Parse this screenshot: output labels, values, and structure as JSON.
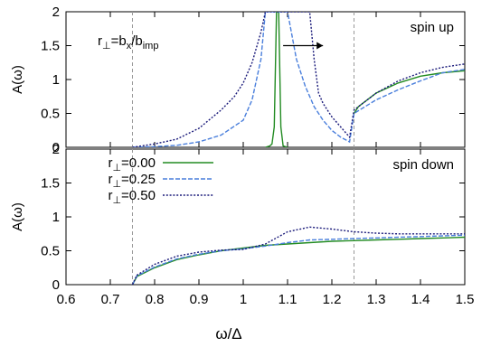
{
  "chart_data": [
    {
      "panel": "top",
      "type": "line",
      "annotation_label": "spin up",
      "ylabel": "A(ω)",
      "xlim": [
        0.6,
        1.5
      ],
      "ylim": [
        0,
        2
      ],
      "yticks": [
        "0",
        "0.5",
        "1",
        "1.5",
        "2"
      ],
      "formula": {
        "main": "r",
        "sub1": "⊥",
        "mid": "=b",
        "sub2": "x",
        "slash": "/b",
        "sub3": "imp"
      },
      "dashed_vertical_lines": [
        0.75,
        1.25
      ],
      "series": [
        {
          "color": "#228b22",
          "style": "solid",
          "x": [
            1.25,
            1.26,
            1.3,
            1.35,
            1.4,
            1.45,
            1.5
          ],
          "y": [
            0.5,
            0.6,
            0.8,
            0.95,
            1.05,
            1.1,
            1.13
          ],
          "peak": {
            "x": [
              1.05,
              1.06,
              1.065,
              1.07,
              1.075,
              1.08,
              1.085,
              1.09,
              1.1
            ],
            "y": [
              0.0,
              0.02,
              0.05,
              0.3,
              2.0,
              2.0,
              0.3,
              0.02,
              0.0
            ]
          }
        },
        {
          "color": "#4a7fdc",
          "style": "dashed",
          "x": [
            0.75,
            0.8,
            0.85,
            0.9,
            0.95,
            1.0,
            1.02,
            1.04,
            1.05,
            1.1,
            1.12,
            1.14,
            1.16,
            1.18,
            1.2,
            1.22,
            1.24,
            1.25,
            1.3,
            1.35,
            1.4,
            1.45,
            1.5
          ],
          "y": [
            0.0,
            0.01,
            0.03,
            0.08,
            0.18,
            0.4,
            0.7,
            1.3,
            2.0,
            2.0,
            1.3,
            0.9,
            0.6,
            0.4,
            0.25,
            0.15,
            0.08,
            0.5,
            0.7,
            0.85,
            0.98,
            1.1,
            1.15
          ]
        },
        {
          "color": "#1a1a7a",
          "style": "dotted",
          "x": [
            0.75,
            0.8,
            0.85,
            0.9,
            0.95,
            0.98,
            1.0,
            1.02,
            1.04,
            1.05,
            1.15,
            1.16,
            1.17,
            1.18,
            1.2,
            1.22,
            1.24,
            1.25,
            1.3,
            1.35,
            1.4,
            1.45,
            1.5
          ],
          "y": [
            0.0,
            0.05,
            0.12,
            0.28,
            0.55,
            0.75,
            0.95,
            1.25,
            1.7,
            2.0,
            2.0,
            1.3,
            0.8,
            0.65,
            0.45,
            0.3,
            0.15,
            0.55,
            0.8,
            0.98,
            1.1,
            1.18,
            1.23
          ]
        }
      ]
    },
    {
      "panel": "bottom",
      "type": "line",
      "annotation_label": "spin down",
      "ylabel": "A(ω)",
      "xlabel": "ω/Δ",
      "xlim": [
        0.6,
        1.5
      ],
      "ylim": [
        0,
        2
      ],
      "xticks": [
        "0.6",
        "0.7",
        "0.8",
        "0.9",
        "1",
        "1.1",
        "1.2",
        "1.3",
        "1.4",
        "1.5"
      ],
      "yticks": [
        "0",
        "0.5",
        "1",
        "1.5",
        "2"
      ],
      "dashed_vertical_lines": [
        0.75,
        1.25
      ],
      "legend": [
        "r⊥=0.00",
        "r⊥=0.25",
        "r⊥=0.50"
      ],
      "series": [
        {
          "name": "r⊥=0.00",
          "legend_main": "r",
          "legend_sub": "⊥",
          "legend_rest": "=0.00",
          "color": "#228b22",
          "style": "solid",
          "x": [
            0.75,
            0.76,
            0.8,
            0.85,
            0.9,
            0.95,
            1.0,
            1.05,
            1.1,
            1.15,
            1.2,
            1.25,
            1.3,
            1.35,
            1.4,
            1.45,
            1.5
          ],
          "y": [
            0.0,
            0.12,
            0.25,
            0.37,
            0.44,
            0.5,
            0.54,
            0.58,
            0.6,
            0.62,
            0.64,
            0.65,
            0.66,
            0.67,
            0.68,
            0.69,
            0.7
          ]
        },
        {
          "name": "r⊥=0.25",
          "legend_main": "r",
          "legend_sub": "⊥",
          "legend_rest": "=0.25",
          "color": "#4a7fdc",
          "style": "dashed",
          "x": [
            0.75,
            0.76,
            0.8,
            0.85,
            0.9,
            0.95,
            1.0,
            1.05,
            1.1,
            1.15,
            1.2,
            1.25,
            1.3,
            1.35,
            1.4,
            1.45,
            1.5
          ],
          "y": [
            0.0,
            0.13,
            0.26,
            0.38,
            0.45,
            0.5,
            0.53,
            0.57,
            0.62,
            0.66,
            0.67,
            0.68,
            0.69,
            0.7,
            0.71,
            0.72,
            0.73
          ]
        },
        {
          "name": "r⊥=0.50",
          "legend_main": "r",
          "legend_sub": "⊥",
          "legend_rest": "=0.50",
          "color": "#1a1a7a",
          "style": "dotted",
          "x": [
            0.75,
            0.76,
            0.8,
            0.85,
            0.9,
            0.95,
            1.0,
            1.05,
            1.1,
            1.15,
            1.2,
            1.25,
            1.3,
            1.35,
            1.4,
            1.45,
            1.5
          ],
          "y": [
            0.0,
            0.14,
            0.3,
            0.42,
            0.48,
            0.51,
            0.52,
            0.6,
            0.78,
            0.85,
            0.82,
            0.78,
            0.76,
            0.75,
            0.75,
            0.75,
            0.75
          ]
        }
      ]
    }
  ]
}
